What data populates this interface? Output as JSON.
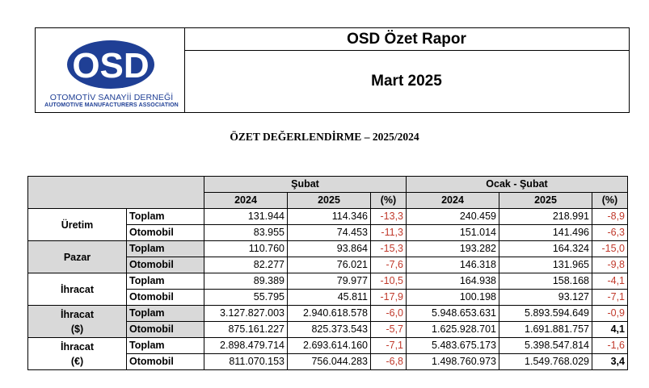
{
  "header": {
    "logo_text": "OSD",
    "logo_line1": "OTOMOTİV SANAYİİ DERNEĞİ",
    "logo_line2": "AUTOMOTIVE MANUFACTURERS ASSOCIATION",
    "title": "OSD Özet Rapor",
    "period": "Mart 2025"
  },
  "section_title": "ÖZET DEĞERLENDİRME – 2025/2024",
  "table": {
    "group_headers": [
      "Şubat",
      "Ocak - Şubat"
    ],
    "col_headers": [
      "2024",
      "2025",
      "(%)",
      "2024",
      "2025",
      "(%)"
    ],
    "rows": [
      {
        "category": "Üretim",
        "category2": "",
        "items": [
          {
            "sub": "Toplam",
            "v": [
              "131.944",
              "114.346",
              "-13,3",
              "240.459",
              "218.991",
              "-8,9"
            ]
          },
          {
            "sub": "Otomobil",
            "v": [
              "83.955",
              "74.453",
              "-11,3",
              "151.014",
              "141.496",
              "-6,3"
            ]
          }
        ]
      },
      {
        "category": "Pazar",
        "category2": "",
        "items": [
          {
            "sub": "Toplam",
            "v": [
              "110.760",
              "93.864",
              "-15,3",
              "193.282",
              "164.324",
              "-15,0"
            ]
          },
          {
            "sub": "Otomobil",
            "v": [
              "82.277",
              "76.021",
              "-7,6",
              "146.318",
              "131.965",
              "-9,8"
            ]
          }
        ]
      },
      {
        "category": "İhracat",
        "category2": "",
        "items": [
          {
            "sub": "Toplam",
            "v": [
              "89.389",
              "79.977",
              "-10,5",
              "164.938",
              "158.168",
              "-4,1"
            ]
          },
          {
            "sub": "Otomobil",
            "v": [
              "55.795",
              "45.811",
              "-17,9",
              "100.198",
              "93.127",
              "-7,1"
            ]
          }
        ]
      },
      {
        "category": "İhracat",
        "category2": "($)",
        "items": [
          {
            "sub": "Toplam",
            "v": [
              "3.127.827.003",
              "2.940.618.578",
              "-6,0",
              "5.948.653.631",
              "5.893.594.649",
              "-0,9"
            ]
          },
          {
            "sub": "Otomobil",
            "v": [
              "875.161.227",
              "825.373.543",
              "-5,7",
              "1.625.928.701",
              "1.691.881.757",
              "4,1"
            ]
          }
        ]
      },
      {
        "category": "İhracat",
        "category2": "(€)",
        "items": [
          {
            "sub": "Toplam",
            "v": [
              "2.898.479.714",
              "2.693.614.160",
              "-7,1",
              "5.483.675.173",
              "5.398.547.814",
              "-1,6"
            ]
          },
          {
            "sub": "Otomobil",
            "v": [
              "811.070.153",
              "756.044.283",
              "-6,8",
              "1.498.760.973",
              "1.549.768.029",
              "3,4"
            ]
          }
        ]
      }
    ]
  }
}
